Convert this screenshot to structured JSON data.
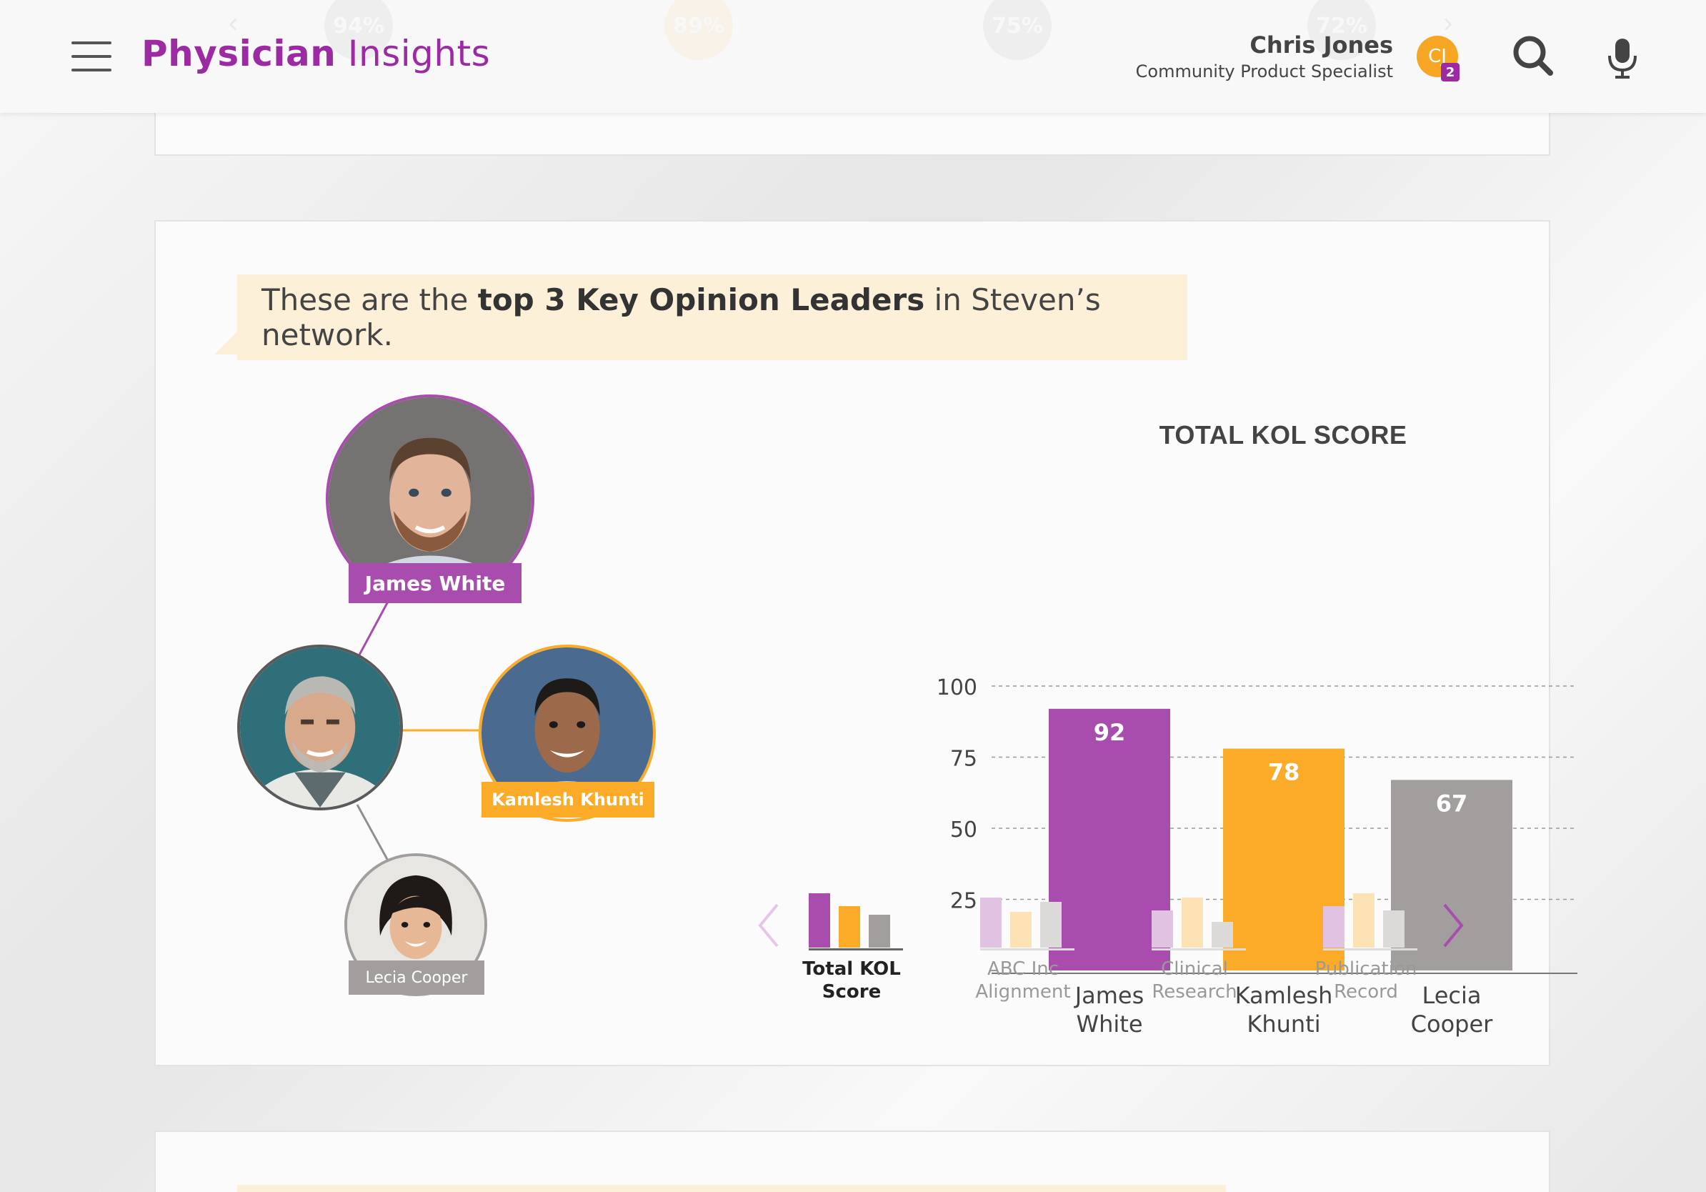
{
  "app": {
    "title_bold": "Physician",
    "title_light": " Insights"
  },
  "header_ghost": {
    "values": [
      "94%",
      "89%",
      "75%",
      "72%"
    ]
  },
  "user": {
    "name": "Chris Jones",
    "role": "Community Product Specialist",
    "initials": "CJ",
    "badge": "2"
  },
  "colors": {
    "purple": "#a84cad",
    "orange": "#fbab27",
    "gray": "#a39e9e",
    "brand": "#9b2aa3"
  },
  "intro": {
    "prefix": "These are the ",
    "emphasis": "top 3 Key Opinion Leaders",
    "suffix": " in Steven’s network."
  },
  "network": {
    "nodes": [
      {
        "name": "James White",
        "ring": "purple"
      },
      {
        "name": "Kamlesh Khunti",
        "ring": "orange"
      },
      {
        "name": "Lecia Cooper",
        "ring": "gray"
      }
    ]
  },
  "chart_data": {
    "type": "bar",
    "title": "TOTAL KOL SCORE",
    "categories": [
      "James White",
      "Kamlesh Khunti",
      "Lecia Cooper"
    ],
    "category_lines": [
      [
        "James",
        "White"
      ],
      [
        "Kamlesh",
        "Khunti"
      ],
      [
        "Lecia",
        "Cooper"
      ]
    ],
    "values": [
      92,
      78,
      67
    ],
    "bar_colors": [
      "#a84cad",
      "#fbab27",
      "#a39e9e"
    ],
    "yticks": [
      25,
      50,
      75,
      100
    ],
    "ylim": [
      0,
      100
    ],
    "grid": true,
    "xlabel": "",
    "ylabel": ""
  },
  "metrics": [
    {
      "label_lines": [
        "Total KOL",
        "Score"
      ],
      "active": true
    },
    {
      "label_lines": [
        "ABC Inc",
        "Alignment"
      ],
      "active": false
    },
    {
      "label_lines": [
        "Clinical",
        "Research"
      ],
      "active": false
    },
    {
      "label_lines": [
        "Publication",
        "Record"
      ],
      "active": false
    }
  ]
}
